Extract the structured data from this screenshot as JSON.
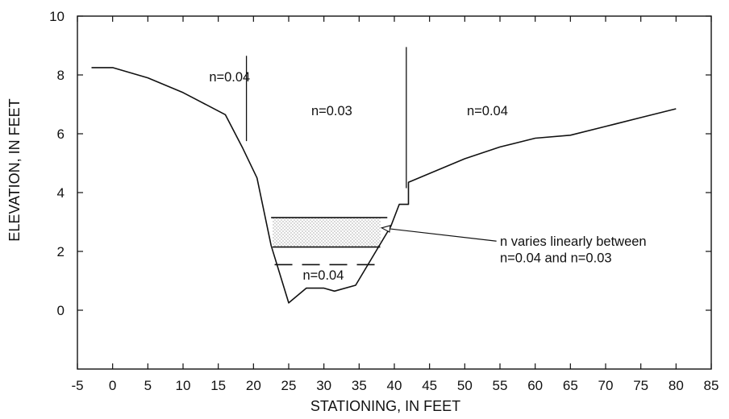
{
  "chart_data": {
    "type": "line",
    "title": "",
    "xlabel": "STATIONING, IN FEET",
    "ylabel": "ELEVATION, IN FEET",
    "xlim": [
      -5,
      85
    ],
    "ylim": [
      -2,
      10
    ],
    "grid": false,
    "legend": "none",
    "x_ticks": [
      "-5",
      "0",
      "5",
      "10",
      "15",
      "20",
      "25",
      "30",
      "35",
      "40",
      "45",
      "50",
      "55",
      "60",
      "65",
      "70",
      "75",
      "80",
      "85"
    ],
    "y_ticks": [
      "0",
      "2",
      "4",
      "6",
      "8",
      "10"
    ],
    "series": [
      {
        "x": [
          -3,
          0,
          5,
          10,
          16,
          18.5,
          20.5,
          22.5,
          25,
          27.5,
          30,
          31.5,
          34.5,
          39.5,
          40.7,
          42,
          42,
          45,
          50,
          55,
          60,
          65,
          70,
          75,
          80
        ],
        "y": [
          8.25,
          8.25,
          7.9,
          7.4,
          6.65,
          5.5,
          4.5,
          2.2,
          0.25,
          0.75,
          0.75,
          0.65,
          0.85,
          2.85,
          3.6,
          3.6,
          4.35,
          4.65,
          5.15,
          5.55,
          5.85,
          5.95,
          6.25,
          6.55,
          6.85
        ]
      }
    ],
    "subdivision_lines": [
      {
        "x": 19,
        "y": [
          5.75,
          8.65
        ]
      },
      {
        "x": 41.7,
        "y": [
          4.15,
          8.95
        ]
      }
    ],
    "stage_lines": [
      {
        "x": [
          22.5,
          39
        ],
        "y": 3.15,
        "style": "solid"
      },
      {
        "x": [
          22.7,
          38
        ],
        "y": 2.15,
        "style": "solid"
      },
      {
        "x": [
          23,
          38.5
        ],
        "y": 1.55,
        "style": "dashed"
      }
    ],
    "annotations": [
      {
        "text": "n=0.04",
        "x": 13.7,
        "y": 7.95
      },
      {
        "text": "n=0.03",
        "x": 28.2,
        "y": 6.8
      },
      {
        "text": "n=0.04",
        "x": 50.3,
        "y": 6.8
      },
      {
        "text": "n=0.04",
        "x": 27,
        "y": 1.2
      },
      {
        "text": "n varies linearly between",
        "x": 55,
        "y": 2.35
      },
      {
        "text": "n=0.04 and n=0.03",
        "x": 55,
        "y": 1.8
      }
    ],
    "arrow": {
      "from": [
        54.5,
        2.35
      ],
      "to": [
        38.2,
        2.8
      ]
    },
    "colors": {
      "line": "#111111",
      "stipple": "#333333"
    }
  }
}
